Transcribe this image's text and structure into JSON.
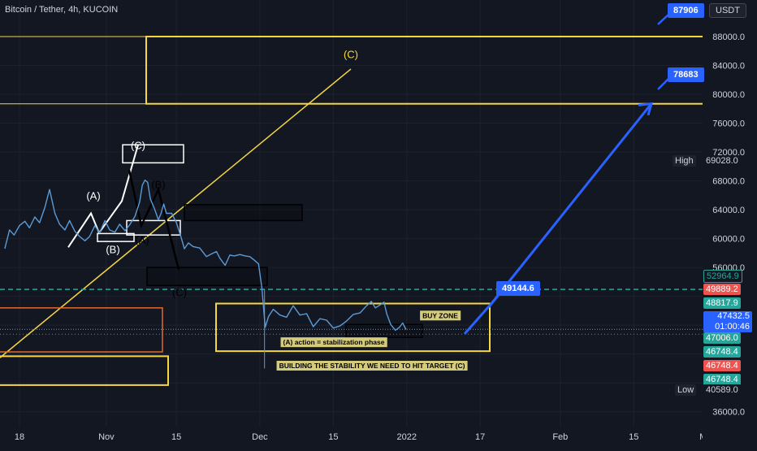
{
  "header": {
    "symbol_title": "Bitcoin / Tether, 4h, KUCOIN",
    "currency": "USDT"
  },
  "colors": {
    "background": "#131722",
    "price_line": "#5b9bd5",
    "yellow": "#f5d742",
    "blue": "#2962ff",
    "orange": "#e8682c",
    "teal": "#26a69a",
    "red": "#ef5350"
  },
  "chart_data": {
    "type": "line",
    "title": "Bitcoin / Tether, 4h, KUCOIN",
    "y_axis": {
      "ticks": [
        36000,
        40000,
        44000,
        48000,
        52000,
        56000,
        60000,
        64000,
        68000,
        72000,
        76000,
        80000,
        84000,
        88000
      ],
      "tick_labels": [
        "36000.0",
        "",
        "",
        "",
        "",
        "56000.0",
        "60000.0",
        "64000.0",
        "68000.0",
        "72000.0",
        "76000.0",
        "80000.0",
        "84000.0",
        "88000.0"
      ],
      "range": [
        34000,
        91000
      ]
    },
    "x_axis": {
      "ticks": [
        0,
        13,
        23.5,
        36,
        47,
        58,
        69,
        81,
        92,
        103
      ],
      "tick_labels": [
        "18",
        "Nov",
        "15",
        "Dec",
        "15",
        "2022",
        "17",
        "Feb",
        "15",
        "Mar"
      ],
      "range": [
        -2.2,
        103.8
      ]
    },
    "series": [
      {
        "points": [
          [
            -2.2,
            58600
          ],
          [
            -1.5,
            61200
          ],
          [
            -0.8,
            60500
          ],
          [
            0,
            61800
          ],
          [
            0.8,
            62400
          ],
          [
            1.5,
            61500
          ],
          [
            2.3,
            63000
          ],
          [
            3,
            62200
          ],
          [
            3.8,
            64300
          ],
          [
            4.5,
            66800
          ],
          [
            5.3,
            63500
          ],
          [
            6,
            62000
          ],
          [
            6.8,
            61200
          ],
          [
            7.5,
            62500
          ],
          [
            8.3,
            61000
          ],
          [
            9,
            60300
          ],
          [
            9.8,
            59700
          ],
          [
            10.5,
            60300
          ],
          [
            11.3,
            61800
          ],
          [
            12,
            60800
          ],
          [
            12.8,
            62500
          ],
          [
            13.5,
            61200
          ],
          [
            14.3,
            60900
          ],
          [
            15,
            62000
          ],
          [
            15.8,
            61100
          ],
          [
            16.5,
            61900
          ],
          [
            17.3,
            63100
          ],
          [
            18,
            65100
          ],
          [
            18.4,
            67400
          ],
          [
            18.8,
            68100
          ],
          [
            19.2,
            67800
          ],
          [
            19.6,
            65500
          ],
          [
            20.2,
            64200
          ],
          [
            20.8,
            62600
          ],
          [
            21.2,
            63500
          ],
          [
            21.6,
            64800
          ],
          [
            22,
            63500
          ],
          [
            22.8,
            63500
          ],
          [
            23.5,
            62200
          ],
          [
            24.2,
            60200
          ],
          [
            24.7,
            58600
          ],
          [
            25.3,
            59400
          ],
          [
            26,
            58900
          ],
          [
            27,
            58700
          ],
          [
            28,
            57500
          ],
          [
            28.8,
            57900
          ],
          [
            29.5,
            58200
          ],
          [
            30,
            57300
          ],
          [
            30.8,
            56300
          ],
          [
            31.5,
            57700
          ],
          [
            32.2,
            57600
          ],
          [
            33,
            57800
          ],
          [
            33.8,
            57600
          ],
          [
            34.5,
            57500
          ],
          [
            35.3,
            56900
          ],
          [
            35.8,
            56500
          ],
          [
            36.3,
            53200
          ],
          [
            36.8,
            47700
          ],
          [
            37.3,
            49200
          ],
          [
            38,
            50200
          ],
          [
            39,
            49400
          ],
          [
            40,
            49100
          ],
          [
            41,
            50700
          ],
          [
            42,
            49400
          ],
          [
            43,
            49600
          ],
          [
            44,
            47800
          ],
          [
            45,
            48900
          ],
          [
            46,
            48700
          ],
          [
            47,
            47600
          ],
          [
            48,
            47900
          ],
          [
            49,
            48600
          ],
          [
            50,
            49500
          ],
          [
            51,
            49700
          ],
          [
            52,
            50700
          ],
          [
            52.7,
            51300
          ],
          [
            53.3,
            50400
          ],
          [
            54,
            50800
          ],
          [
            54.6,
            51200
          ],
          [
            55,
            49600
          ],
          [
            55.6,
            48100
          ],
          [
            56.3,
            47300
          ],
          [
            56.9,
            47700
          ],
          [
            57.4,
            48300
          ],
          [
            57.9,
            47400
          ]
        ]
      }
    ],
    "current_price": 47432.5,
    "bar_countdown": "01:00:46",
    "high": {
      "label": "High",
      "value": "69028.0"
    },
    "low": {
      "label": "Low",
      "value": "40589.0"
    },
    "price_tags": [
      {
        "value": "52964.9",
        "color": "#131722",
        "text_color": "#26a69a",
        "border": "#26a69a"
      },
      {
        "value": "49889.2",
        "color": "#ef5350",
        "text_color": "#ffffff"
      },
      {
        "value": "48817.9",
        "color": "#26a69a",
        "text_color": "#ffffff"
      },
      {
        "value": "47006.0",
        "color": "#26a69a",
        "text_color": "#ffffff"
      },
      {
        "value": "46748.4",
        "color": "#26a69a",
        "text_color": "#ffffff"
      },
      {
        "value": "46748.4",
        "color": "#ef5350",
        "text_color": "#ffffff"
      },
      {
        "value": "46748.4",
        "color": "#26a69a",
        "text_color": "#ffffff"
      }
    ],
    "targets": [
      {
        "label": "87906"
      },
      {
        "label": "78683"
      },
      {
        "label": "49144.6"
      }
    ],
    "wave_labels": [
      "(C)",
      "(C)",
      "(A)",
      "(B)",
      "(A)",
      "(B)",
      "(C)"
    ],
    "annotations": [
      {
        "text": "BUY ZONE"
      },
      {
        "text": "(A) action = stabilization phase"
      },
      {
        "text": "BUILDING THE STABILITY WE NEED TO HIT TARGET (C)"
      }
    ]
  }
}
